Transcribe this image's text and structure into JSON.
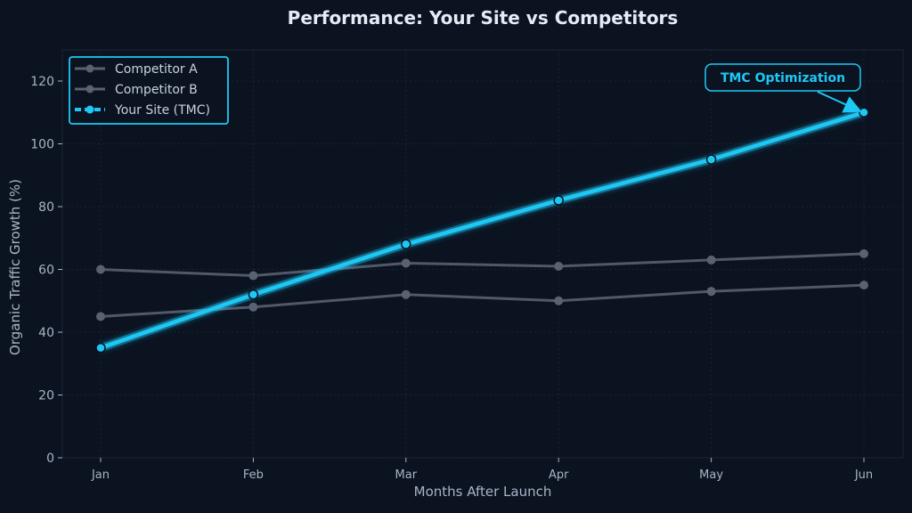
{
  "chart_data": {
    "type": "line",
    "title": "Performance: Your Site vs Competitors",
    "xlabel": "Months After Launch",
    "ylabel": "Organic Traffic Growth (%)",
    "categories": [
      "Jan",
      "Feb",
      "Mar",
      "Apr",
      "May",
      "Jun"
    ],
    "yticks": [
      "0",
      "20",
      "40",
      "60",
      "80",
      "100",
      "120"
    ],
    "ylim": [
      0,
      130
    ],
    "grid": true,
    "legend_position": "upper left",
    "series": [
      {
        "name": "Competitor A",
        "values": [
          60,
          58,
          62,
          61,
          63,
          65
        ],
        "color": "#5a6170"
      },
      {
        "name": "Competitor B",
        "values": [
          45,
          48,
          52,
          50,
          53,
          55
        ],
        "color": "#5a6170"
      },
      {
        "name": "Your Site (TMC)",
        "values": [
          35,
          52,
          68,
          82,
          95,
          110
        ],
        "color": "#1ec8f5"
      }
    ],
    "annotations": [
      {
        "text": "TMC Optimization",
        "x": "Jun",
        "y": 110
      }
    ]
  },
  "colors": {
    "background": "#0b1220",
    "accent": "#1ec8f5",
    "competitor": "#5a6170",
    "text": "#a9b4c6",
    "title": "#e6ecf5"
  }
}
